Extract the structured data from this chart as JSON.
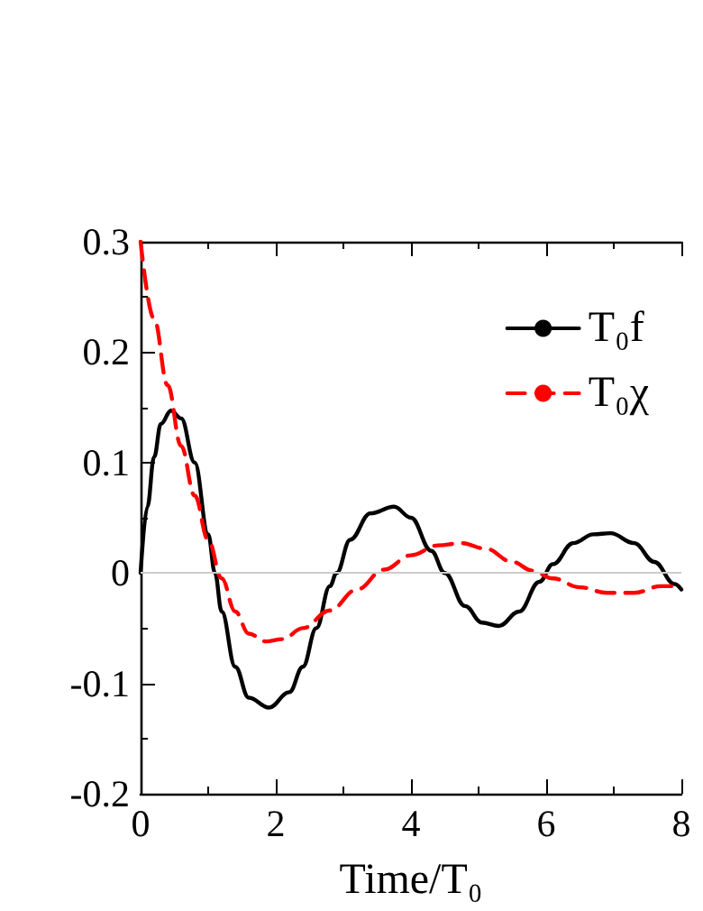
{
  "chart_data": {
    "type": "line",
    "xlabel": "Time/T₀",
    "xlim": [
      0,
      8
    ],
    "xticks": [
      0,
      2,
      4,
      6,
      8
    ],
    "ylim": [
      -0.2,
      0.3
    ],
    "yticks": [
      -0.2,
      -0.1,
      0,
      0.1,
      0.2,
      0.3
    ],
    "series": [
      {
        "name": "T₀f",
        "color": "#000000",
        "line_style": "solid",
        "x": [
          0,
          0.1,
          0.2,
          0.3,
          0.45,
          0.6,
          0.8,
          1.0,
          1.1,
          1.2,
          1.4,
          1.6,
          1.9,
          2.2,
          2.4,
          2.6,
          2.8,
          2.9,
          3.1,
          3.4,
          3.75,
          4.0,
          4.3,
          4.5,
          4.8,
          5.05,
          5.3,
          5.6,
          5.9,
          6.1,
          6.4,
          6.7,
          6.95,
          7.3,
          7.6,
          7.9,
          8.0
        ],
        "values": [
          0,
          0.06,
          0.105,
          0.135,
          0.147,
          0.14,
          0.1,
          0.035,
          0.0,
          -0.035,
          -0.085,
          -0.113,
          -0.122,
          -0.108,
          -0.085,
          -0.05,
          -0.012,
          0.0,
          0.03,
          0.054,
          0.06,
          0.05,
          0.02,
          0.0,
          -0.03,
          -0.045,
          -0.048,
          -0.035,
          -0.008,
          0.008,
          0.027,
          0.035,
          0.036,
          0.027,
          0.01,
          -0.01,
          -0.015
        ]
      },
      {
        "name": "T₀χ",
        "color": "#ff0000",
        "line_style": "dashed",
        "x": [
          0,
          0.2,
          0.4,
          0.6,
          0.8,
          1.0,
          1.2,
          1.4,
          1.6,
          1.85,
          2.1,
          2.4,
          2.8,
          3.2,
          3.6,
          4.0,
          4.4,
          4.75,
          5.1,
          5.5,
          5.8,
          6.1,
          6.5,
          6.9,
          7.3,
          7.7,
          8.0
        ],
        "values": [
          0.3,
          0.23,
          0.17,
          0.115,
          0.07,
          0.03,
          -0.005,
          -0.035,
          -0.055,
          -0.062,
          -0.06,
          -0.05,
          -0.034,
          -0.015,
          0.003,
          0.016,
          0.025,
          0.027,
          0.022,
          0.01,
          0.002,
          -0.005,
          -0.013,
          -0.018,
          -0.018,
          -0.012,
          -0.012
        ]
      }
    ],
    "ref_lines": [
      {
        "axis": "y",
        "value": 0,
        "color": "#cccccc"
      }
    ],
    "legend": "top right",
    "marker": "none",
    "grid": false
  }
}
